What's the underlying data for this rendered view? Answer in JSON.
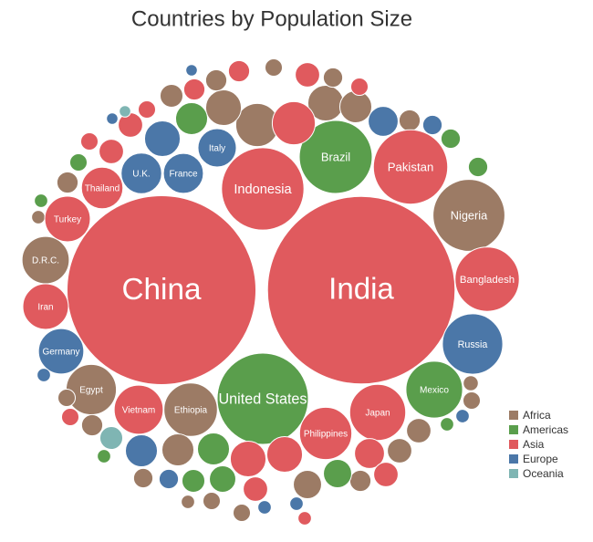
{
  "chart_data": {
    "type": "bubble",
    "title": "Countries by Population Size",
    "series": [
      {
        "name": "Africa",
        "color": "#9c7b65",
        "categories": [
          "Nigeria",
          "Ethiopia",
          "Egypt",
          "D.R.C.",
          null,
          null,
          null,
          null,
          null,
          null,
          null,
          null,
          null,
          null,
          null,
          null,
          null,
          null,
          null,
          null,
          null,
          null,
          null,
          null,
          null,
          null,
          null,
          null
        ],
        "values": [
          206,
          115,
          102,
          90,
          75,
          52,
          42,
          52,
          13,
          16,
          19,
          22,
          19,
          19,
          8,
          13,
          19,
          16,
          42,
          33,
          25,
          25,
          19,
          13,
          13,
          8,
          13,
          10
        ]
      },
      {
        "name": "Americas",
        "color": "#5a9e4c",
        "categories": [
          "Brazil",
          "United States",
          "Mexico",
          null,
          null,
          null,
          null,
          null,
          null,
          null,
          null,
          null,
          null,
          null
        ],
        "values": [
          212,
          330,
          129,
          42,
          13,
          8,
          42,
          22,
          29,
          33,
          16,
          16,
          8,
          8
        ]
      },
      {
        "name": "Asia",
        "color": "#e05a5e",
        "categories": [
          "China",
          "India",
          "Indonesia",
          "Pakistan",
          "Bangladesh",
          "Japan",
          "Philippines",
          "Vietnam",
          "Iran",
          "Turkey",
          "Thailand",
          null,
          null,
          null,
          null,
          null,
          null,
          null,
          null,
          null,
          null,
          null,
          null,
          null,
          null,
          null,
          null
        ],
        "values": [
          1400,
          1380,
          270,
          220,
          165,
          126,
          110,
          97,
          84,
          84,
          70,
          75,
          19,
          25,
          19,
          13,
          25,
          25,
          13,
          13,
          52,
          52,
          25,
          37,
          25,
          8,
          13
        ]
      },
      {
        "name": "Europe",
        "color": "#4b77a8",
        "categories": [
          "Russia",
          "Germany",
          "U.K.",
          "France",
          "Italy",
          null,
          null,
          null,
          null,
          null,
          null,
          null,
          null,
          null,
          null,
          null
        ],
        "values": [
          146,
          83,
          67,
          65,
          60,
          52,
          37,
          16,
          8,
          42,
          16,
          8,
          8,
          6,
          8,
          6
        ]
      },
      {
        "name": "Oceania",
        "color": "#7fb5b3",
        "categories": [
          null,
          null
        ],
        "values": [
          22,
          6
        ]
      }
    ],
    "legend": "bottom-right"
  }
}
